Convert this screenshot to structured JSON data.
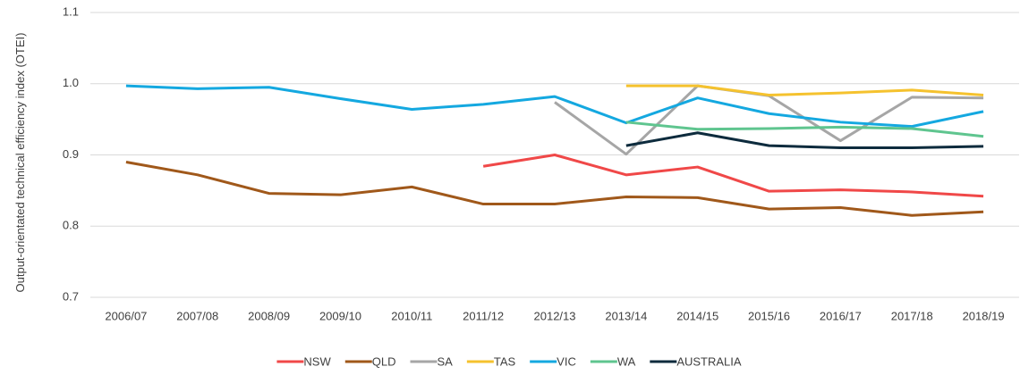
{
  "chart_data": {
    "type": "line",
    "y_label": "Output-orientated technical efficiency index (OTEI)",
    "categories": [
      "2006/07",
      "2007/08",
      "2008/09",
      "2009/10",
      "2010/11",
      "2011/12",
      "2012/13",
      "2013/14",
      "2014/15",
      "2015/16",
      "2016/17",
      "2017/18",
      "2018/19"
    ],
    "series": [
      {
        "name": "NSW",
        "color": "#f04848",
        "values": [
          null,
          null,
          null,
          null,
          null,
          0.884,
          0.9,
          0.872,
          0.883,
          0.849,
          0.851,
          0.848,
          0.842
        ]
      },
      {
        "name": "QLD",
        "color": "#a0581a",
        "values": [
          0.89,
          0.872,
          0.846,
          0.844,
          0.855,
          0.831,
          0.831,
          0.841,
          0.84,
          0.824,
          0.826,
          0.815,
          0.82
        ]
      },
      {
        "name": "SA",
        "color": "#a6a6a6",
        "values": [
          null,
          null,
          null,
          null,
          null,
          null,
          0.974,
          0.901,
          0.997,
          0.983,
          0.92,
          0.981,
          0.98
        ]
      },
      {
        "name": "TAS",
        "color": "#f5c22e",
        "values": [
          null,
          null,
          null,
          null,
          null,
          null,
          null,
          0.997,
          0.997,
          0.984,
          0.987,
          0.991,
          0.984
        ]
      },
      {
        "name": "VIC",
        "color": "#14a8e0",
        "values": [
          0.997,
          0.993,
          0.995,
          0.979,
          0.964,
          0.971,
          0.982,
          0.945,
          0.98,
          0.958,
          0.946,
          0.94,
          0.961
        ]
      },
      {
        "name": "WA",
        "color": "#5fc58f",
        "values": [
          null,
          null,
          null,
          null,
          null,
          null,
          null,
          0.946,
          0.936,
          0.937,
          0.939,
          0.937,
          0.926
        ]
      },
      {
        "name": "AUSTRALIA",
        "color": "#0d2b3d",
        "values": [
          null,
          null,
          null,
          null,
          null,
          null,
          null,
          0.913,
          0.931,
          0.913,
          0.91,
          0.91,
          0.912
        ]
      }
    ],
    "ylim": [
      0.7,
      1.1
    ],
    "yticks": [
      0.7,
      0.8,
      0.9,
      {
        "value": 1,
        "label": "1.0"
      },
      1.1
    ],
    "grid": true,
    "legend": "bottom"
  }
}
